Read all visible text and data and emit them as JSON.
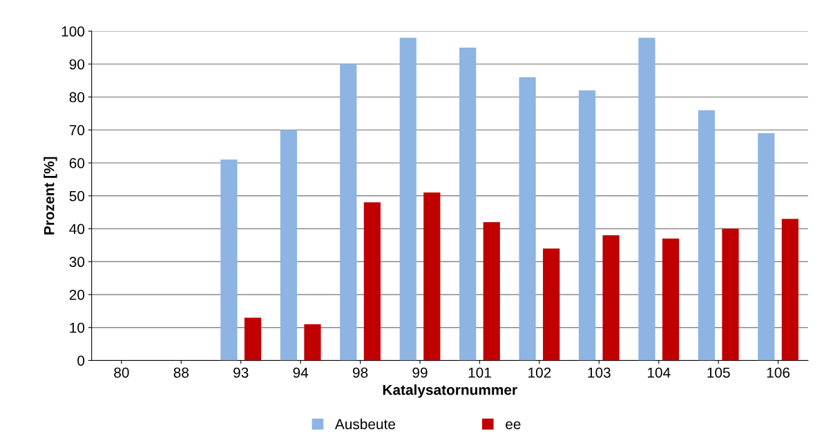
{
  "chart_data": {
    "type": "bar",
    "xlabel": "Katalysatornummer",
    "ylabel": "Prozent [%]",
    "categories": [
      "80",
      "88",
      "93",
      "94",
      "98",
      "99",
      "101",
      "102",
      "103",
      "104",
      "105",
      "106"
    ],
    "series": [
      {
        "name": "Ausbeute",
        "color": "#8db4e2",
        "values": [
          0,
          0,
          61,
          70,
          90,
          98,
          95,
          86,
          82,
          98,
          76,
          69
        ]
      },
      {
        "name": "ee",
        "color": "#c00000",
        "values": [
          0,
          0,
          13,
          11,
          48,
          51,
          42,
          34,
          38,
          37,
          40,
          43
        ]
      }
    ],
    "ylim": [
      0,
      100
    ],
    "yticks": [
      0,
      10,
      20,
      30,
      40,
      50,
      60,
      70,
      80,
      90,
      100
    ],
    "grid": "y",
    "legend": "bottom"
  }
}
